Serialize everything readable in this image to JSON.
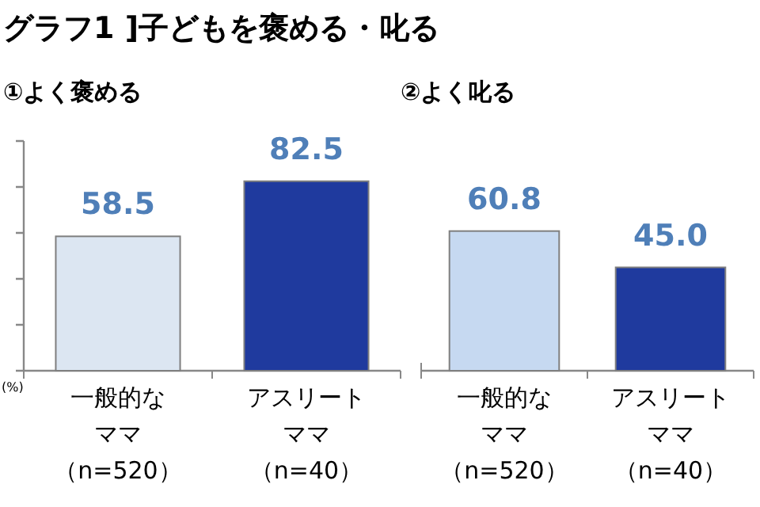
{
  "chart_data": [
    {
      "type": "bar",
      "title": "グラフ1 ]子どもを褒める・叱る",
      "subtitle": "①よく褒める",
      "ylabel": "(%)",
      "categories": [
        "一般的なママ（n=520）",
        "アスリートママ（n=40）"
      ],
      "values": [
        58.5,
        82.5
      ],
      "colors": [
        "#dce6f2",
        "#1f3a9e"
      ],
      "ylim": [
        0,
        100
      ],
      "yticks": [
        {
          "value": 0,
          "label": null
        },
        {
          "value": 20,
          "label": null
        },
        {
          "value": 40,
          "label": null
        },
        {
          "value": 60,
          "label": null
        },
        {
          "value": 80,
          "label": null
        },
        {
          "value": 100,
          "label": null
        }
      ],
      "data_labels": true
    },
    {
      "type": "bar",
      "subtitle": "②よく叱る",
      "categories": [
        "一般的なママ（n=520）",
        "アスリートママ（n=40）"
      ],
      "values": [
        60.8,
        45.0
      ],
      "colors": [
        "#c6d9f1",
        "#1f3a9e"
      ],
      "value_labels": [
        "60.8",
        "45.0"
      ]
    }
  ]
}
